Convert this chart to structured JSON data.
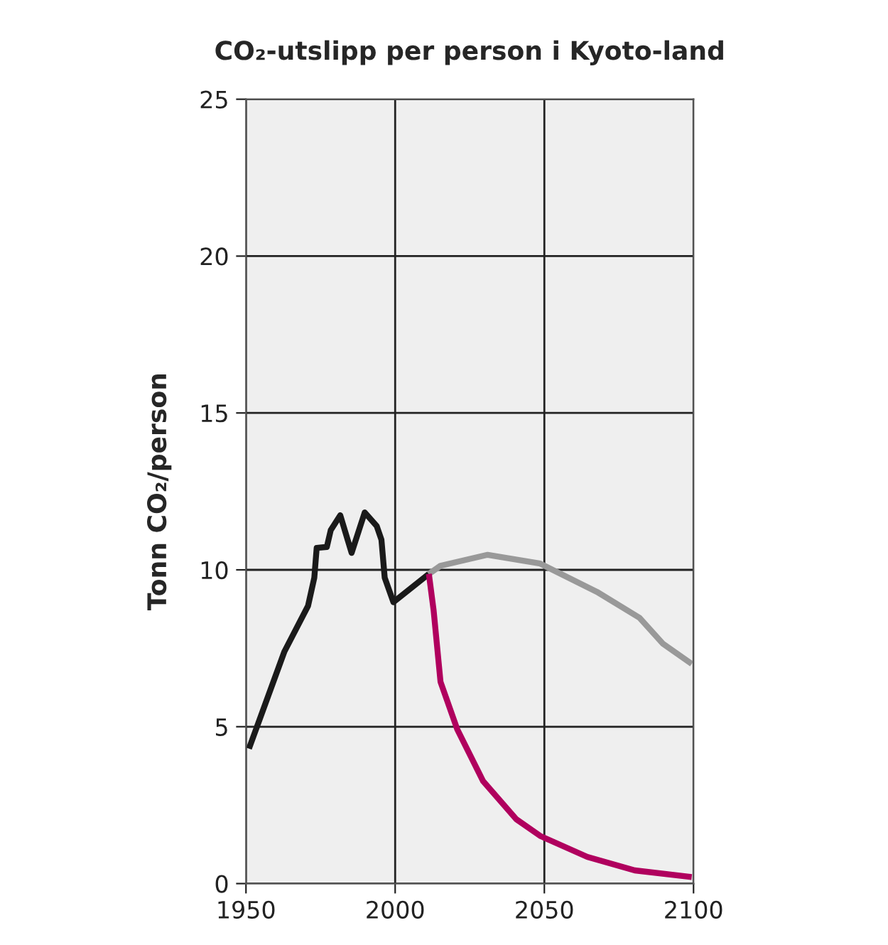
{
  "chart_data": {
    "type": "line",
    "title": "CO₂-utslipp per person i Kyoto-land",
    "ylabel": "Tonn CO₂/person",
    "xlim": [
      1950,
      2100
    ],
    "xticks": [
      1950,
      2000,
      2050,
      2100
    ],
    "ylim": [
      0,
      25
    ],
    "yticks": [
      0,
      5,
      10,
      15,
      20,
      25
    ],
    "grid": true,
    "line_style": "solid",
    "marker": "none",
    "series": [
      {
        "color": "#1a1a1a",
        "x": [
          1951,
          1962.9,
          1970.8,
          1972.9,
          1973.7,
          1977.1,
          1978.4,
          1981.6,
          1985.4,
          1989.8,
          1993.8,
          1995.4,
          1996.5,
          1999.4,
          2011.3
        ],
        "values": [
          4.3,
          7.4,
          8.85,
          9.75,
          10.7,
          10.73,
          11.26,
          11.74,
          10.54,
          11.83,
          11.4,
          10.96,
          9.75,
          8.97,
          9.87
        ]
      },
      {
        "color": "#999999",
        "x": [
          2011.3,
          2015.2,
          2031,
          2048.6,
          2067.6,
          2081.9,
          2089.8,
          2099.4
        ],
        "values": [
          9.87,
          10.13,
          10.48,
          10.2,
          9.3,
          8.47,
          7.64,
          7.0
        ]
      },
      {
        "color": "#b0005e",
        "x": [
          2011.3,
          2012.9,
          2015.2,
          2020.8,
          2029.5,
          2040.6,
          2048.6,
          2064.4,
          2080.3,
          2099.4
        ],
        "values": [
          9.87,
          8.7,
          6.43,
          4.92,
          3.26,
          2.05,
          1.52,
          0.85,
          0.42,
          0.21
        ]
      }
    ]
  }
}
